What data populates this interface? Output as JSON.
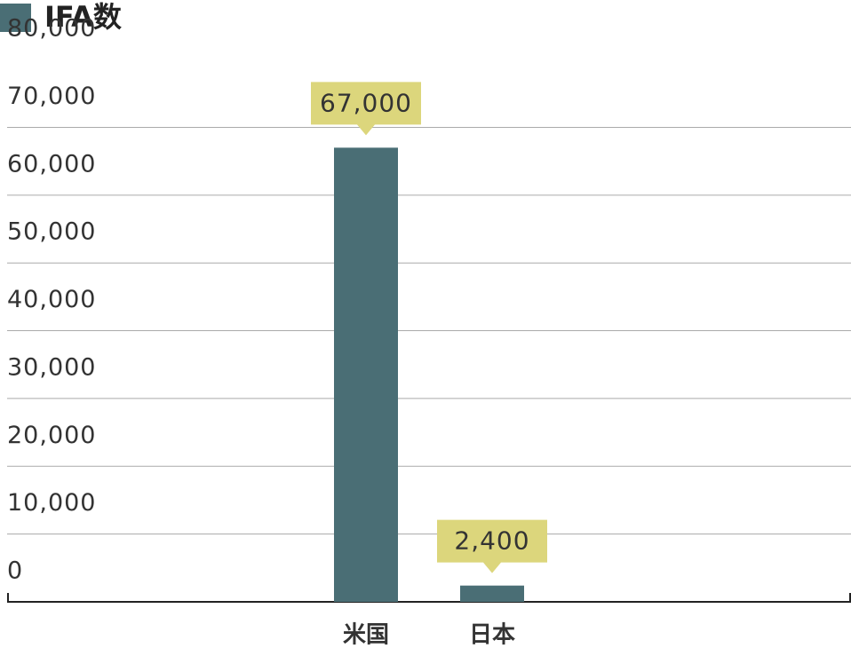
{
  "chart_data": {
    "type": "bar",
    "legend": "IFA数",
    "color": "#4a6e75",
    "categories": [
      "米国",
      "日本"
    ],
    "values": [
      67000,
      2400
    ],
    "value_labels": [
      "67,000",
      "2,400"
    ],
    "ylim": [
      0,
      80000
    ],
    "yticks": [
      {
        "value": 0,
        "label": "0"
      },
      {
        "value": 10000,
        "label": "10,000"
      },
      {
        "value": 20000,
        "label": "20,000"
      },
      {
        "value": 30000,
        "label": "30,000"
      },
      {
        "value": 40000,
        "label": "40,000"
      },
      {
        "value": 50000,
        "label": "50,000"
      },
      {
        "value": 60000,
        "label": "60,000"
      },
      {
        "value": 70000,
        "label": "70,000"
      },
      {
        "value": 80000,
        "label": "80,000"
      }
    ],
    "grid": true
  }
}
